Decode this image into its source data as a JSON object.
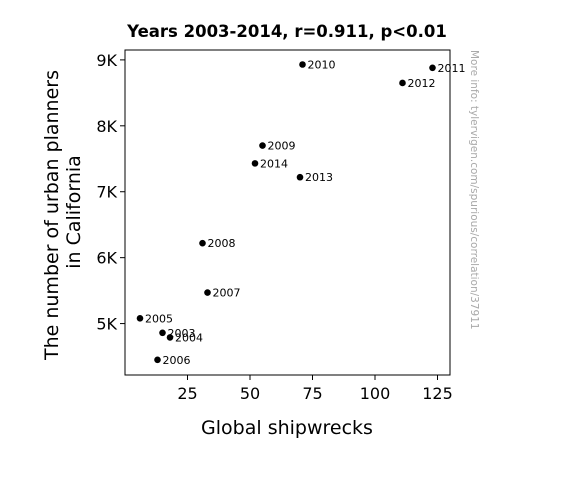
{
  "chart_data": {
    "type": "scatter",
    "title": "Years 2003-2014, r=0.911, p<0.01",
    "xlabel": "Global shipwrecks",
    "ylabel_lines": [
      "The number of urban planners",
      "in California"
    ],
    "watermark": "More info: tylervigen.com/spurious/correlation/37911",
    "xlim": [
      0,
      130
    ],
    "ylim": [
      4220,
      9150
    ],
    "xticks": [
      {
        "value": 25,
        "label": "25"
      },
      {
        "value": 50,
        "label": "50"
      },
      {
        "value": 75,
        "label": "75"
      },
      {
        "value": 100,
        "label": "100"
      },
      {
        "value": 125,
        "label": "125"
      }
    ],
    "yticks": [
      {
        "value": 5000,
        "label": "5K"
      },
      {
        "value": 6000,
        "label": "6K"
      },
      {
        "value": 7000,
        "label": "7K"
      },
      {
        "value": 8000,
        "label": "8K"
      },
      {
        "value": 9000,
        "label": "9K"
      }
    ],
    "points": [
      {
        "label": "2003",
        "x": 15,
        "y": 4860
      },
      {
        "label": "2004",
        "x": 18,
        "y": 4790
      },
      {
        "label": "2005",
        "x": 6,
        "y": 5080
      },
      {
        "label": "2006",
        "x": 13,
        "y": 4450
      },
      {
        "label": "2007",
        "x": 33,
        "y": 5470
      },
      {
        "label": "2008",
        "x": 31,
        "y": 6220
      },
      {
        "label": "2009",
        "x": 55,
        "y": 7700
      },
      {
        "label": "2010",
        "x": 71,
        "y": 8930
      },
      {
        "label": "2011",
        "x": 123,
        "y": 8880
      },
      {
        "label": "2012",
        "x": 111,
        "y": 8650
      },
      {
        "label": "2013",
        "x": 70,
        "y": 7220
      },
      {
        "label": "2014",
        "x": 52,
        "y": 7430
      }
    ],
    "marker_color": "#000000",
    "grid": false,
    "legend": "none"
  }
}
